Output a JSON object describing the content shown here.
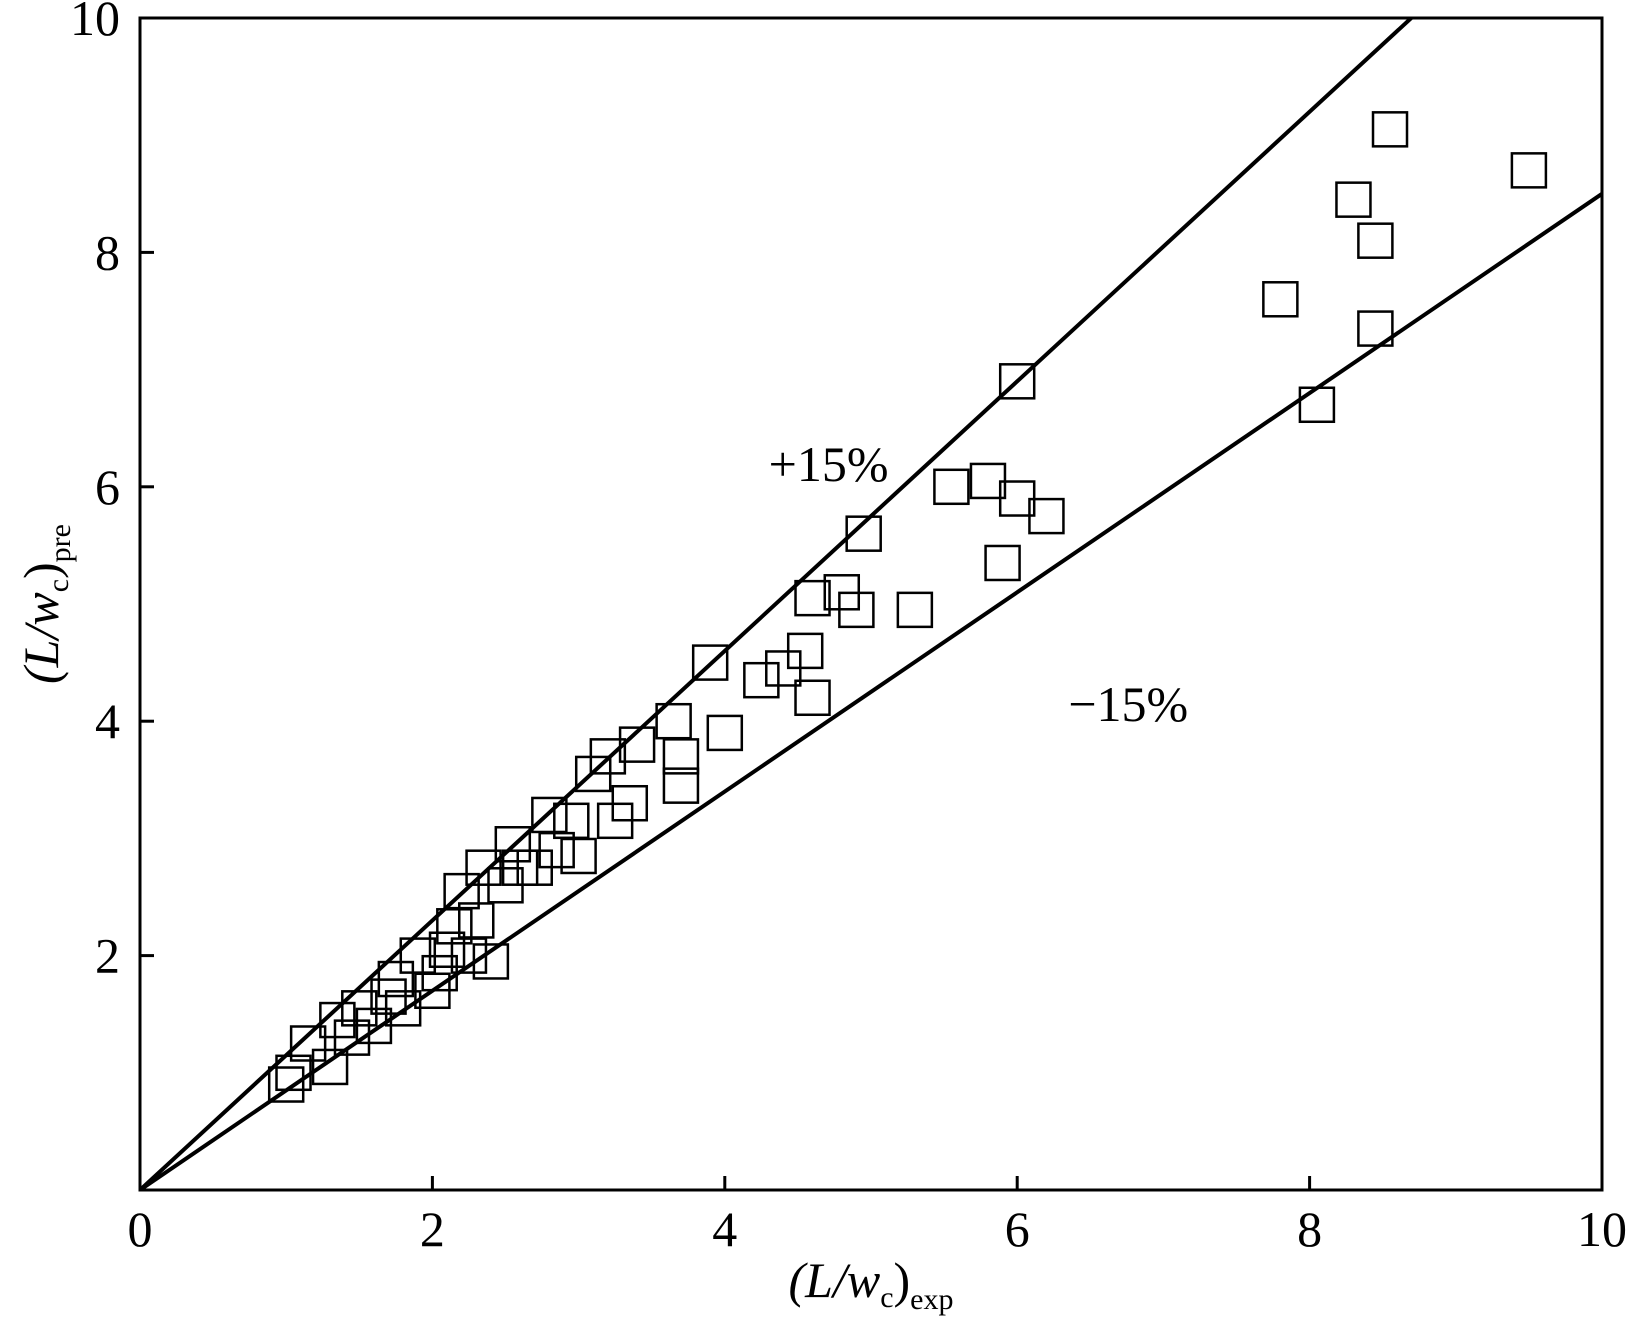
{
  "chart_data": {
    "type": "scatter",
    "title": "",
    "xlabel": {
      "main": "(L/w",
      "sub_c": "c",
      "close": ")",
      "sub": "exp"
    },
    "ylabel": {
      "main": "(L/w",
      "sub_c": "c",
      "close": ")",
      "sub": "pre"
    },
    "xlim": [
      0,
      10
    ],
    "ylim": [
      0,
      10
    ],
    "xticks": [
      0,
      2,
      4,
      6,
      8,
      10
    ],
    "yticks": [
      2,
      4,
      6,
      8,
      10
    ],
    "xtick_labels": [
      "0",
      "2",
      "4",
      "6",
      "8",
      "10"
    ],
    "ytick_labels": [
      "2",
      "4",
      "6",
      "8",
      "10"
    ],
    "grid": false,
    "marker": "open-square",
    "reference_lines": [
      {
        "label": "+15%",
        "slope": 1.15
      },
      {
        "label": "−15%",
        "slope": 0.85
      }
    ],
    "points": [
      [
        1.0,
        0.9
      ],
      [
        1.05,
        1.0
      ],
      [
        1.15,
        1.25
      ],
      [
        1.3,
        1.05
      ],
      [
        1.35,
        1.45
      ],
      [
        1.45,
        1.3
      ],
      [
        1.5,
        1.55
      ],
      [
        1.6,
        1.4
      ],
      [
        1.7,
        1.65
      ],
      [
        1.75,
        1.8
      ],
      [
        1.8,
        1.55
      ],
      [
        1.9,
        2.0
      ],
      [
        2.0,
        1.7
      ],
      [
        2.05,
        1.85
      ],
      [
        2.1,
        2.05
      ],
      [
        2.15,
        2.25
      ],
      [
        2.2,
        2.55
      ],
      [
        2.25,
        2.0
      ],
      [
        2.3,
        2.3
      ],
      [
        2.35,
        2.75
      ],
      [
        2.4,
        1.95
      ],
      [
        2.5,
        2.6
      ],
      [
        2.55,
        2.95
      ],
      [
        2.6,
        2.75
      ],
      [
        2.7,
        2.75
      ],
      [
        2.8,
        3.2
      ],
      [
        2.85,
        2.9
      ],
      [
        2.95,
        3.15
      ],
      [
        3.0,
        2.85
      ],
      [
        3.1,
        3.55
      ],
      [
        3.2,
        3.7
      ],
      [
        3.25,
        3.15
      ],
      [
        3.35,
        3.3
      ],
      [
        3.4,
        3.8
      ],
      [
        3.65,
        4.0
      ],
      [
        3.7,
        3.7
      ],
      [
        3.7,
        3.45
      ],
      [
        3.9,
        4.5
      ],
      [
        4.0,
        3.9
      ],
      [
        4.25,
        4.35
      ],
      [
        4.4,
        4.45
      ],
      [
        4.55,
        4.6
      ],
      [
        4.6,
        4.2
      ],
      [
        4.6,
        5.05
      ],
      [
        4.8,
        5.1
      ],
      [
        4.9,
        4.95
      ],
      [
        4.95,
        5.6
      ],
      [
        5.3,
        4.95
      ],
      [
        5.55,
        6.0
      ],
      [
        5.8,
        6.05
      ],
      [
        5.9,
        5.35
      ],
      [
        6.0,
        5.9
      ],
      [
        6.0,
        6.9
      ],
      [
        6.2,
        5.75
      ],
      [
        7.8,
        7.6
      ],
      [
        8.05,
        6.7
      ],
      [
        8.3,
        8.45
      ],
      [
        8.45,
        8.1
      ],
      [
        8.45,
        7.35
      ],
      [
        8.55,
        9.05
      ],
      [
        9.5,
        8.7
      ]
    ],
    "annotations": [
      {
        "text": "+15%",
        "x": 4.3,
        "y": 6.05
      },
      {
        "text": "−15%",
        "x": 6.35,
        "y": 4.0
      }
    ],
    "colors": {
      "line": "#000000",
      "marker_stroke": "#000000",
      "background": "#ffffff"
    }
  }
}
